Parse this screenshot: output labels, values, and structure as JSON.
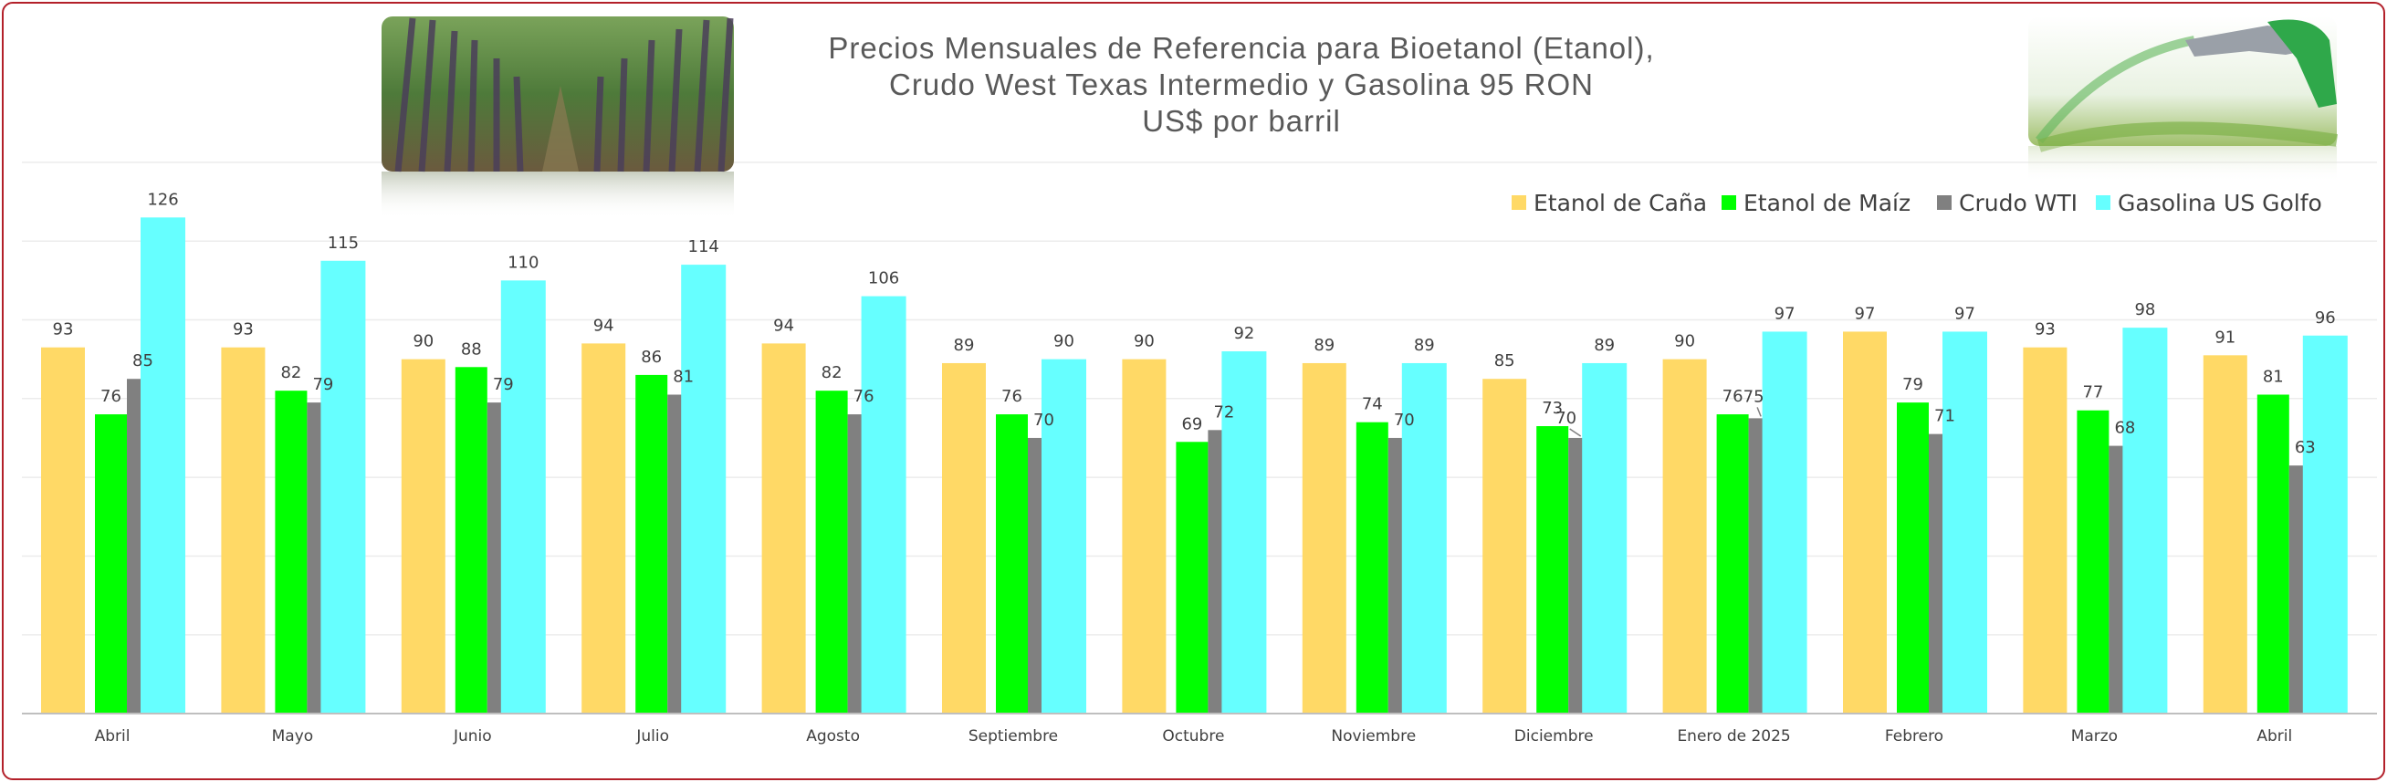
{
  "chart_data": {
    "type": "bar",
    "title": [
      "Precios Mensuales de Referencia para Bioetanol (Etanol),",
      "Crudo West Texas Intermedio y Gasolina 95 RON",
      "US$ por barril"
    ],
    "categories": [
      "Abril",
      "Mayo",
      "Junio",
      "Julio",
      "Agosto",
      "Septiembre",
      "Octubre",
      "Noviembre",
      "Diciembre",
      "Enero  de 2025",
      "Febrero",
      "Marzo",
      "Abril"
    ],
    "series": [
      {
        "name": "Etanol de Caña",
        "color": "#FFD966",
        "values": [
          93,
          93,
          90,
          94,
          94,
          89,
          90,
          89,
          85,
          90,
          97,
          93,
          91
        ]
      },
      {
        "name": "Etanol de Maíz",
        "color": "#00FF00",
        "values": [
          76,
          82,
          88,
          86,
          82,
          76,
          69,
          74,
          73,
          76,
          79,
          77,
          81
        ]
      },
      {
        "name": "Crudo WTI",
        "color": "#808080",
        "values": [
          85,
          79,
          79,
          81,
          76,
          70,
          72,
          70,
          70,
          75,
          71,
          68,
          63
        ]
      },
      {
        "name": "Gasolina US Golfo",
        "color": "#66FFFF",
        "values": [
          126,
          115,
          110,
          114,
          106,
          90,
          92,
          89,
          89,
          97,
          97,
          98,
          96
        ]
      }
    ],
    "ylim": [
      0,
      140
    ],
    "grid": true,
    "legend": "top-right",
    "images": [
      "sugarcane-field-photo",
      "fuel-nozzle-photo"
    ]
  }
}
